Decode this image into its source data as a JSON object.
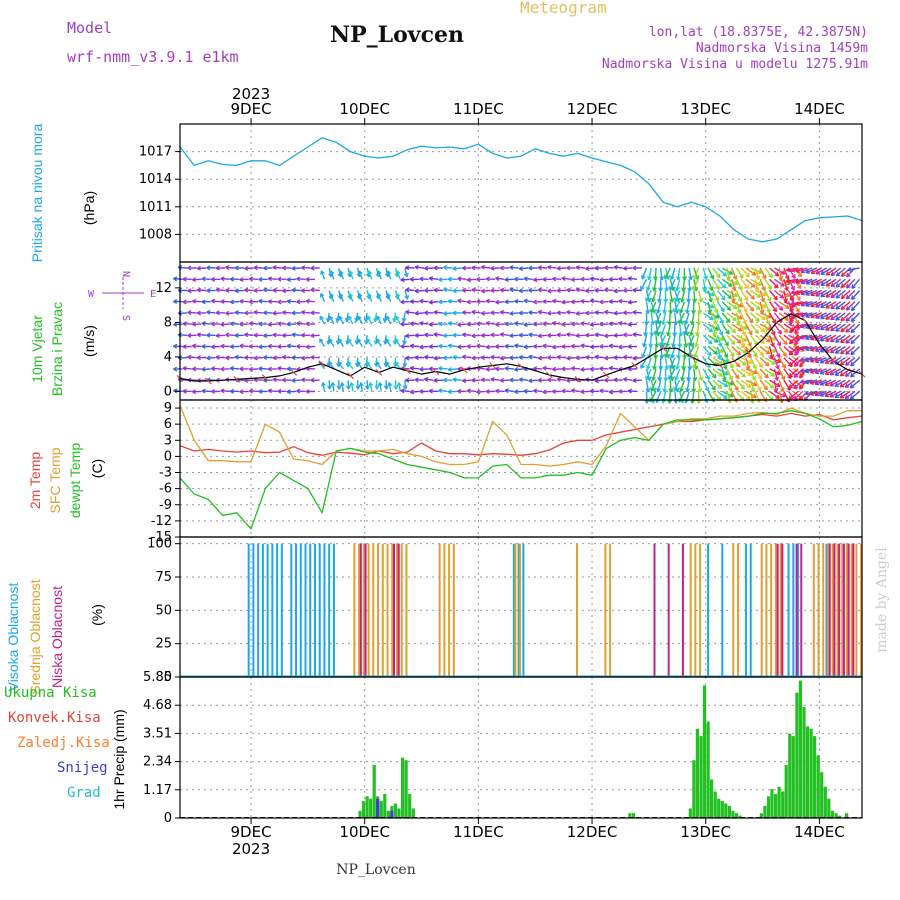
{
  "header": {
    "model_label": "Model",
    "model_name": "wrf-nmm_v3.9.1  e1km",
    "station": "NP_Lovcen",
    "product": "Meteogram",
    "coords": "lon,lat (18.8375E, 42.3875N)",
    "altitude": "Nadmorska Visina 1459m",
    "model_altitude": "Nadmorska Visina u modelu 1275.91m",
    "footer_station": "NP_Lovcen",
    "watermark": "made by Angel"
  },
  "colors": {
    "pressure": "#1ea7e8",
    "t2m": "#e8423c",
    "sfc": "#e0a030",
    "dew": "#22c022",
    "high_cloud": "#1ea7e8",
    "mid_cloud": "#e0a030",
    "low_cloud": "#c0208c",
    "total_precip": "#22c022",
    "conv_precip": "#e8423c",
    "freezing_precip": "#ff7f27",
    "snow": "#3c3cd0",
    "hail": "#20c0c0",
    "grid": "#999999",
    "label_purple": "#a040c0",
    "product_gold": "#e0c060"
  },
  "chart_data": [
    {
      "id": "pressure",
      "type": "line",
      "ylabel_lines": [
        "Pritisak na nivou mora",
        "(hPa)"
      ],
      "yticks": [
        1008,
        1011,
        1014,
        1017
      ],
      "ylim": [
        1005,
        1020
      ],
      "x_hours": [
        0,
        3,
        6,
        9,
        12,
        15,
        18,
        21,
        24,
        27,
        30,
        33,
        36,
        39,
        42,
        45,
        48,
        51,
        54,
        57,
        60,
        63,
        66,
        69,
        72,
        75,
        78,
        81,
        84,
        87,
        90,
        93,
        96,
        99,
        102,
        105,
        108,
        111,
        114,
        117,
        120,
        123,
        126,
        129,
        132,
        135,
        138,
        141,
        144
      ],
      "series": [
        {
          "values": [
            1017.5,
            1015.5,
            1016,
            1015.6,
            1015.5,
            1016,
            1016,
            1015.5,
            1016.5,
            1017.5,
            1018.5,
            1018,
            1017,
            1016.5,
            1016.3,
            1016.5,
            1017.2,
            1017.6,
            1017.4,
            1017.5,
            1017.3,
            1017.8,
            1016.8,
            1016.3,
            1016.5,
            1017.3,
            1016.8,
            1016.5,
            1016.8,
            1016.3,
            1015.9,
            1015.5,
            1014.8,
            1013.5,
            1011.5,
            1011,
            1011.5,
            1011,
            1010,
            1008.5,
            1007.5,
            1007.2,
            1007.5,
            1008.5,
            1009.5,
            1009.8,
            1009.9,
            1010,
            1009.5
          ]
        }
      ],
      "x_tick_labels": [
        "9DEC",
        "10DEC",
        "11DEC",
        "12DEC",
        "13DEC",
        "14DEC"
      ],
      "year_label": "2023"
    },
    {
      "id": "wind",
      "type": "line",
      "ylabel_lines": [
        "10m Vjetar",
        "Brzina i Pravac",
        "(m/s)"
      ],
      "yticks": [
        0,
        4,
        8,
        12
      ],
      "ylim": [
        -1,
        15
      ],
      "compass": {
        "east": "E",
        "west": "W",
        "north": "N",
        "south": "S"
      },
      "x_hours": [
        0,
        3,
        6,
        9,
        12,
        15,
        18,
        21,
        24,
        27,
        30,
        33,
        36,
        39,
        42,
        45,
        48,
        51,
        54,
        57,
        60,
        63,
        66,
        69,
        72,
        75,
        78,
        81,
        84,
        87,
        90,
        93,
        96,
        99,
        102,
        105,
        108,
        111,
        114,
        117,
        120,
        123,
        126,
        129,
        132,
        135,
        138,
        141,
        144
      ],
      "series": [
        {
          "values": [
            1.5,
            1.2,
            1.2,
            1.3,
            1.4,
            1.5,
            1.6,
            1.8,
            2.2,
            2.8,
            3.2,
            2.5,
            1.8,
            2.8,
            2.2,
            2.8,
            2.4,
            2.0,
            2.3,
            2.0,
            2.5,
            2.8,
            3.0,
            3.2,
            2.9,
            2.4,
            1.9,
            1.6,
            1.4,
            1.3,
            1.9,
            2.5,
            3.0,
            4.0,
            5.0,
            5.0,
            4.0,
            3.2,
            3.0,
            3.5,
            4.5,
            6.0,
            8.0,
            9.0,
            8.2,
            5.5,
            3.5,
            2.5,
            2.0
          ]
        }
      ]
    },
    {
      "id": "temperature",
      "type": "line",
      "ylabel_lines": [
        "2m Temp",
        "SFC Temp",
        "dewpt Temp",
        "(C)"
      ],
      "yticks": [
        -15,
        -12,
        -9,
        -6,
        -3,
        0,
        3,
        6,
        9
      ],
      "ylim": [
        -15,
        10.5
      ],
      "x_hours": [
        0,
        3,
        6,
        9,
        12,
        15,
        18,
        21,
        24,
        27,
        30,
        33,
        36,
        39,
        42,
        45,
        48,
        51,
        54,
        57,
        60,
        63,
        66,
        69,
        72,
        75,
        78,
        81,
        84,
        87,
        90,
        93,
        96,
        99,
        102,
        105,
        108,
        111,
        114,
        117,
        120,
        123,
        126,
        129,
        132,
        135,
        138,
        141,
        144
      ],
      "series": [
        {
          "name": "2m Temp",
          "values": [
            2.0,
            1.0,
            1.3,
            1.0,
            0.8,
            1.0,
            0.7,
            0.8,
            1.8,
            0.7,
            0.2,
            0.8,
            0.6,
            0.3,
            1.0,
            0.5,
            0.8,
            2.5,
            1.0,
            0.5,
            0.5,
            0.3,
            0.5,
            0.4,
            0.2,
            0.5,
            1.2,
            2.5,
            3.0,
            3.0,
            4.0,
            4.5,
            5.0,
            5.5,
            6.0,
            6.5,
            6.5,
            6.8,
            7.0,
            7.2,
            7.5,
            7.8,
            7.5,
            8.0,
            7.5,
            7.8,
            6.8,
            7.2,
            7.5
          ]
        },
        {
          "name": "SFC Temp",
          "values": [
            9.5,
            3.0,
            -0.8,
            -0.8,
            -1.0,
            -1.0,
            6.0,
            4.5,
            -0.5,
            -0.8,
            -1.5,
            1.0,
            1.5,
            1.0,
            1.0,
            1.3,
            0.5,
            0.0,
            -1.0,
            -1.5,
            -1.5,
            -1.0,
            6.5,
            4.0,
            -1.5,
            -1.5,
            -1.8,
            -1.5,
            -1.0,
            -1.5,
            2.0,
            8.0,
            5.5,
            3.0,
            6.0,
            6.5,
            7.0,
            7.0,
            7.5,
            7.5,
            8.0,
            8.2,
            7.8,
            9.0,
            8.0,
            7.5,
            7.5,
            8.5,
            8.5
          ]
        },
        {
          "name": "dewpt Temp",
          "values": [
            -4.0,
            -7.0,
            -8.0,
            -11.0,
            -10.5,
            -13.5,
            -6.0,
            -3.0,
            -4.5,
            -6.0,
            -10.5,
            1.0,
            1.5,
            0.8,
            0.5,
            -0.5,
            -1.5,
            -2.0,
            -2.5,
            -3.0,
            -4.0,
            -4.0,
            -1.8,
            -1.5,
            -4.0,
            -4.0,
            -3.5,
            -3.5,
            -3.0,
            -3.5,
            1.5,
            3.0,
            3.5,
            3.0,
            6.0,
            6.8,
            6.8,
            6.8,
            7.0,
            7.2,
            7.5,
            8.0,
            8.0,
            8.5,
            8.0,
            7.0,
            5.5,
            5.8,
            6.5
          ]
        }
      ]
    },
    {
      "id": "clouds",
      "type": "bar",
      "ylabel_lines": [
        "Visoka Oblacnost",
        "Srednja Oblacnost",
        "Niska Oblacnost",
        "(%)"
      ],
      "yticks": [
        0,
        25,
        50,
        75,
        100
      ],
      "ylim": [
        0,
        105
      ],
      "high_ranges": [
        [
          14,
          22
        ],
        [
          23,
          33
        ],
        [
          70,
          73
        ],
        [
          111,
          112
        ],
        [
          114,
          115
        ],
        [
          119,
          121
        ],
        [
          128,
          131
        ],
        [
          136,
          137
        ]
      ],
      "mid_ranges": [
        [
          36,
          48
        ],
        [
          54,
          58
        ],
        [
          70,
          72
        ],
        [
          83,
          84
        ],
        [
          89,
          91
        ],
        [
          107,
          110
        ],
        [
          116,
          118
        ],
        [
          122,
          127
        ],
        [
          133,
          144
        ]
      ],
      "low_ranges": [
        [
          38,
          40
        ],
        [
          45,
          47
        ],
        [
          100,
          101
        ],
        [
          103,
          104
        ],
        [
          106,
          107
        ],
        [
          126,
          128
        ],
        [
          130,
          132
        ],
        [
          137,
          143
        ]
      ]
    },
    {
      "id": "precipitation",
      "type": "bar",
      "ylabel_lines": [
        "1hr Precip (mm)"
      ],
      "yticks": [
        0,
        1.17,
        2.34,
        3.51,
        4.68,
        5.85
      ],
      "ylim": [
        0,
        5.85
      ],
      "legend": [
        "Ukupna Kisa",
        "Konvek.Kisa",
        "Zaledj.Kisa",
        "Snijeg",
        "Grad"
      ],
      "start_hour": 38,
      "total": [
        0.3,
        0.7,
        0.9,
        0.8,
        2.2,
        0.9,
        0.7,
        1.0,
        0.3,
        0.5,
        0.6,
        0.4,
        2.5,
        2.4,
        1.0,
        0.4,
        0,
        0,
        0,
        0,
        0,
        0,
        0,
        0,
        0,
        0,
        0,
        0,
        0,
        0,
        0,
        0,
        0,
        0,
        0,
        0,
        0,
        0,
        0,
        0,
        0,
        0,
        0,
        0,
        0,
        0,
        0,
        0,
        0,
        0,
        0,
        0,
        0,
        0,
        0,
        0,
        0,
        0,
        0,
        0,
        0,
        0,
        0,
        0,
        0,
        0,
        0,
        0,
        0,
        0,
        0,
        0,
        0,
        0,
        0,
        0,
        0.2,
        0.2,
        0,
        0,
        0,
        0,
        0,
        0,
        0,
        0,
        0,
        0,
        0,
        0,
        0,
        0,
        0,
        0.4,
        2.4,
        3.7,
        3.4,
        5.5,
        4.0,
        1.6,
        1.1,
        0.8,
        0.7,
        0.6,
        0.5,
        0.3,
        0.2,
        0.1,
        0,
        0,
        0,
        0,
        0,
        0.2,
        0.5,
        0.9,
        1.2,
        1.0,
        1.3,
        1.1,
        2.2,
        3.5,
        3.4,
        5.2,
        5.7,
        4.6,
        3.8,
        3.7,
        3.4,
        2.6,
        1.9,
        1.3,
        0.8,
        0.3,
        0.2,
        0.1,
        0,
        0.2
      ],
      "snow": [
        0,
        0,
        0,
        0,
        0,
        0.8,
        0,
        0,
        0,
        0.3,
        0,
        0,
        0,
        0,
        0,
        0,
        0,
        0,
        0,
        0,
        0,
        0,
        0,
        0,
        0,
        0,
        0,
        0,
        0,
        0,
        0,
        0,
        0,
        0,
        0,
        0,
        0,
        0,
        0,
        0,
        0,
        0,
        0,
        0,
        0,
        0,
        0,
        0,
        0,
        0,
        0,
        0,
        0,
        0,
        0,
        0,
        0,
        0,
        0,
        0,
        0,
        0,
        0,
        0,
        0,
        0,
        0,
        0,
        0,
        0,
        0,
        0,
        0,
        0,
        0,
        0,
        0,
        0,
        0,
        0,
        0,
        0,
        0,
        0,
        0,
        0,
        0,
        0,
        0,
        0,
        0,
        0,
        0,
        0,
        0,
        0,
        0,
        0,
        0,
        0,
        0,
        0,
        0,
        0,
        0,
        0,
        0,
        0,
        0,
        0,
        0,
        0,
        0,
        0,
        0,
        0,
        0,
        0,
        0,
        0,
        0,
        0,
        0,
        0,
        0,
        0,
        0,
        0,
        0,
        0,
        0,
        0,
        0,
        0,
        0,
        0,
        0,
        0,
        0,
        0,
        0,
        0,
        0,
        0,
        0,
        0,
        0,
        0
      ]
    }
  ]
}
